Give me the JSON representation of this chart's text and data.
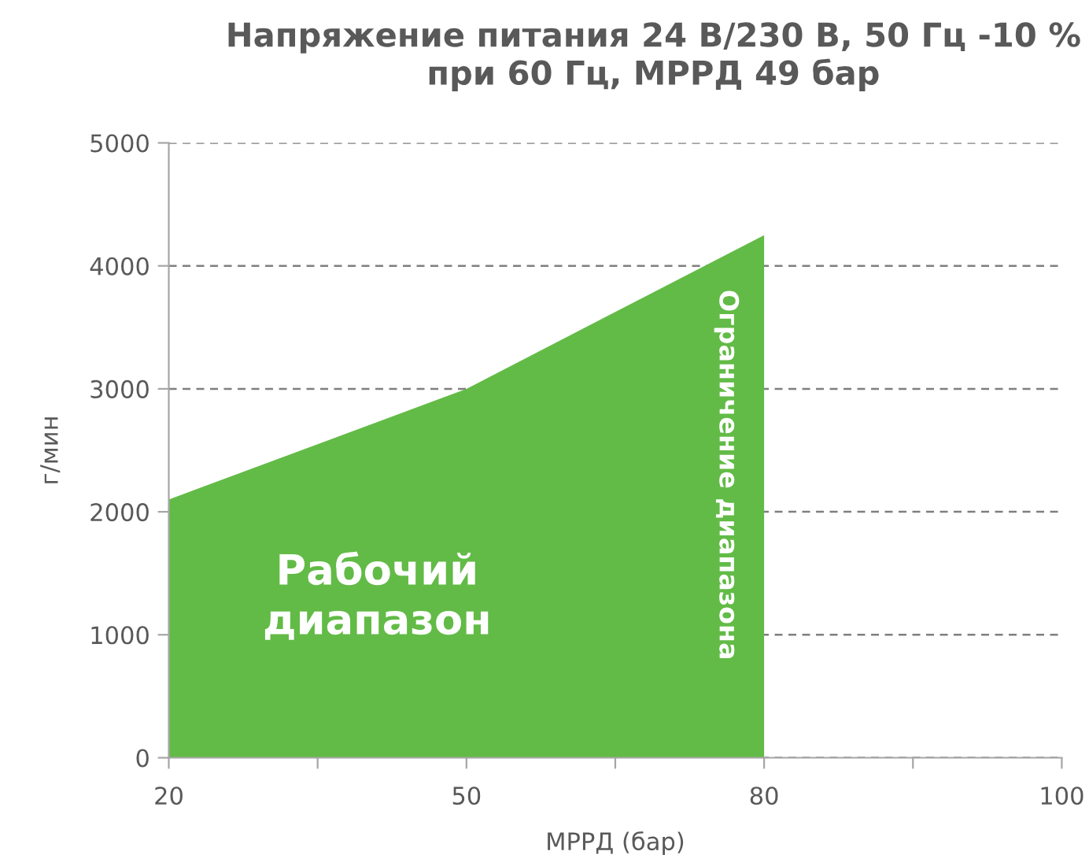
{
  "chart_data": {
    "type": "area",
    "title": "Напряжение питания 24 В/230 В, 50 Гц -10 %\nпри 60 Гц, МРРД 49 бар",
    "xlabel": "МРРД (бар)",
    "ylabel": "г/мин",
    "categories": [
      "20",
      null,
      "50",
      null,
      "80",
      null,
      "100"
    ],
    "series": [
      {
        "color": "#62bb46",
        "values": [
          2100,
          2550,
          3000,
          3625,
          4250,
          null,
          null
        ]
      }
    ],
    "ylim": [
      0,
      5000
    ],
    "yticks": [
      0,
      1000,
      2000,
      3000,
      4000,
      5000
    ],
    "grid": "y",
    "legend": false,
    "annotations": [
      "Рабочий\nдиапазон",
      "Ограничение диапазона"
    ]
  }
}
